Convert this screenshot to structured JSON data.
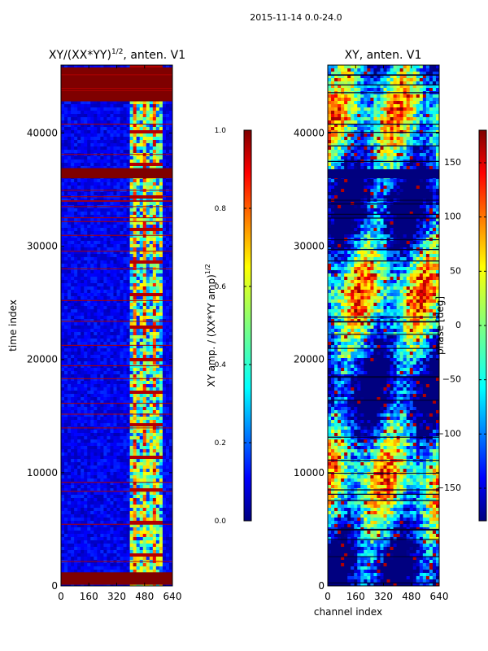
{
  "suptitle": "2015-11-14 0.0-24.0",
  "chart_data": [
    {
      "type": "heatmap",
      "title_main": "XY/(XX*YY)",
      "title_exp": "1/2",
      "title_suffix": ", anten. V1",
      "xlabel": "",
      "ylabel": "time index",
      "xlim": [
        0,
        640
      ],
      "ylim": [
        0,
        46000
      ],
      "xticks": [
        "0",
        "160",
        "320",
        "480",
        "640"
      ],
      "xtick_values": [
        0,
        160,
        320,
        480,
        640
      ],
      "yticks": [
        "0",
        "10000",
        "20000",
        "30000",
        "40000"
      ],
      "ytick_values": [
        0,
        10000,
        20000,
        30000,
        40000
      ],
      "colorbar": {
        "label_main": "XY amp. / (XX*YY amp)",
        "label_exp": "1/2",
        "range": [
          0.0,
          1.0
        ],
        "ticks": [
          "0.0",
          "0.2",
          "0.4",
          "0.6",
          "0.8",
          "1.0"
        ],
        "tick_values": [
          0.0,
          0.2,
          0.4,
          0.6,
          0.8,
          1.0
        ]
      },
      "saturated_rows": [
        [
          36000,
          36900
        ],
        [
          42800,
          45800
        ],
        [
          100,
          1200
        ],
        [
          44000,
          45200
        ]
      ],
      "band_edges": [
        400,
        570
      ]
    },
    {
      "type": "heatmap",
      "title": "XY, anten. V1",
      "xlabel": "channel index",
      "ylabel": "",
      "xlim": [
        0,
        640
      ],
      "ylim": [
        0,
        46000
      ],
      "xticks": [
        "0",
        "160",
        "320",
        "480",
        "640"
      ],
      "xtick_values": [
        0,
        160,
        320,
        480,
        640
      ],
      "yticks": [
        "0",
        "10000",
        "20000",
        "30000",
        "40000"
      ],
      "ytick_values": [
        0,
        10000,
        20000,
        30000,
        40000
      ],
      "colorbar": {
        "label": "phase [deg]",
        "range": [
          -180,
          180
        ],
        "ticks": [
          "−150",
          "−100",
          "−50",
          "0",
          "50",
          "100",
          "150"
        ],
        "tick_values": [
          -150,
          -100,
          -50,
          0,
          50,
          100,
          150
        ]
      },
      "gap_rows": [
        36000,
        36800
      ]
    }
  ],
  "colors": {
    "jet": [
      "#00007f",
      "#0000ff",
      "#007fff",
      "#00ffff",
      "#7fff7f",
      "#ffff00",
      "#ff7f00",
      "#ff0000",
      "#7f0000"
    ]
  }
}
